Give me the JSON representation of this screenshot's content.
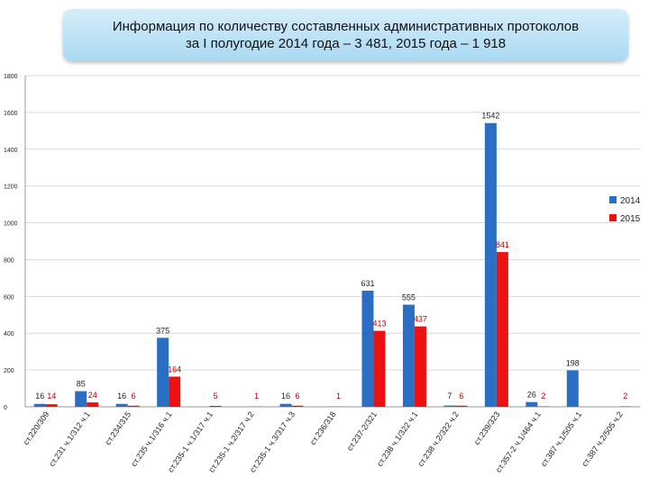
{
  "title": {
    "line1": "Информация по количеству составленных административных протоколов",
    "line2": "за I полугодие 2014 года – 3 481, 2015 года – 1 918"
  },
  "colors": {
    "series_2014": "#2a6fc4",
    "series_2015": "#ee1111",
    "grid": "#d9d9d9"
  },
  "chart_data": {
    "type": "bar",
    "ylim": [
      0,
      1800
    ],
    "yticks": [
      0,
      200,
      400,
      600,
      800,
      1000,
      1200,
      1400,
      1600,
      1800
    ],
    "grid": true,
    "legend_position": "right",
    "categories": [
      "ст.220/309",
      "ст.231 ч.1/312 ч.1",
      "ст.234/315",
      "ст.235 ч.1/316 ч.1",
      "ст.235-1 ч.1/317 ч.1",
      "ст.235-1 ч.2/317 ч.2",
      "ст.235-1 ч.3/317 ч.3",
      "ст.236/318",
      "ст.237-2/321",
      "ст.238 ч.1/322 ч.1",
      "ст.238 ч.2/322 ч.2",
      "ст.239/323",
      "ст.357-2 ч.1/464 ч.1",
      "ст.387 ч.1/505 ч.1",
      "ст.387 ч.2/505 ч.2"
    ],
    "series": [
      {
        "name": "2014",
        "values": [
          16,
          85,
          16,
          375,
          0,
          0,
          16,
          0,
          631,
          555,
          7,
          1542,
          26,
          198,
          0
        ]
      },
      {
        "name": "2015",
        "values": [
          14,
          24,
          6,
          164,
          5,
          1,
          6,
          1,
          413,
          437,
          6,
          841,
          2,
          0,
          2
        ]
      }
    ],
    "labels_2014": [
      "16",
      "85",
      "16",
      "375",
      "",
      "",
      "16",
      "",
      "631",
      "555",
      "7",
      "1542",
      "26",
      "198",
      ""
    ],
    "labels_2015": [
      "14",
      "24",
      "6",
      "164",
      "5",
      "1",
      "6",
      "1",
      "413",
      "437",
      "6",
      "841",
      "2",
      "",
      "2"
    ]
  }
}
